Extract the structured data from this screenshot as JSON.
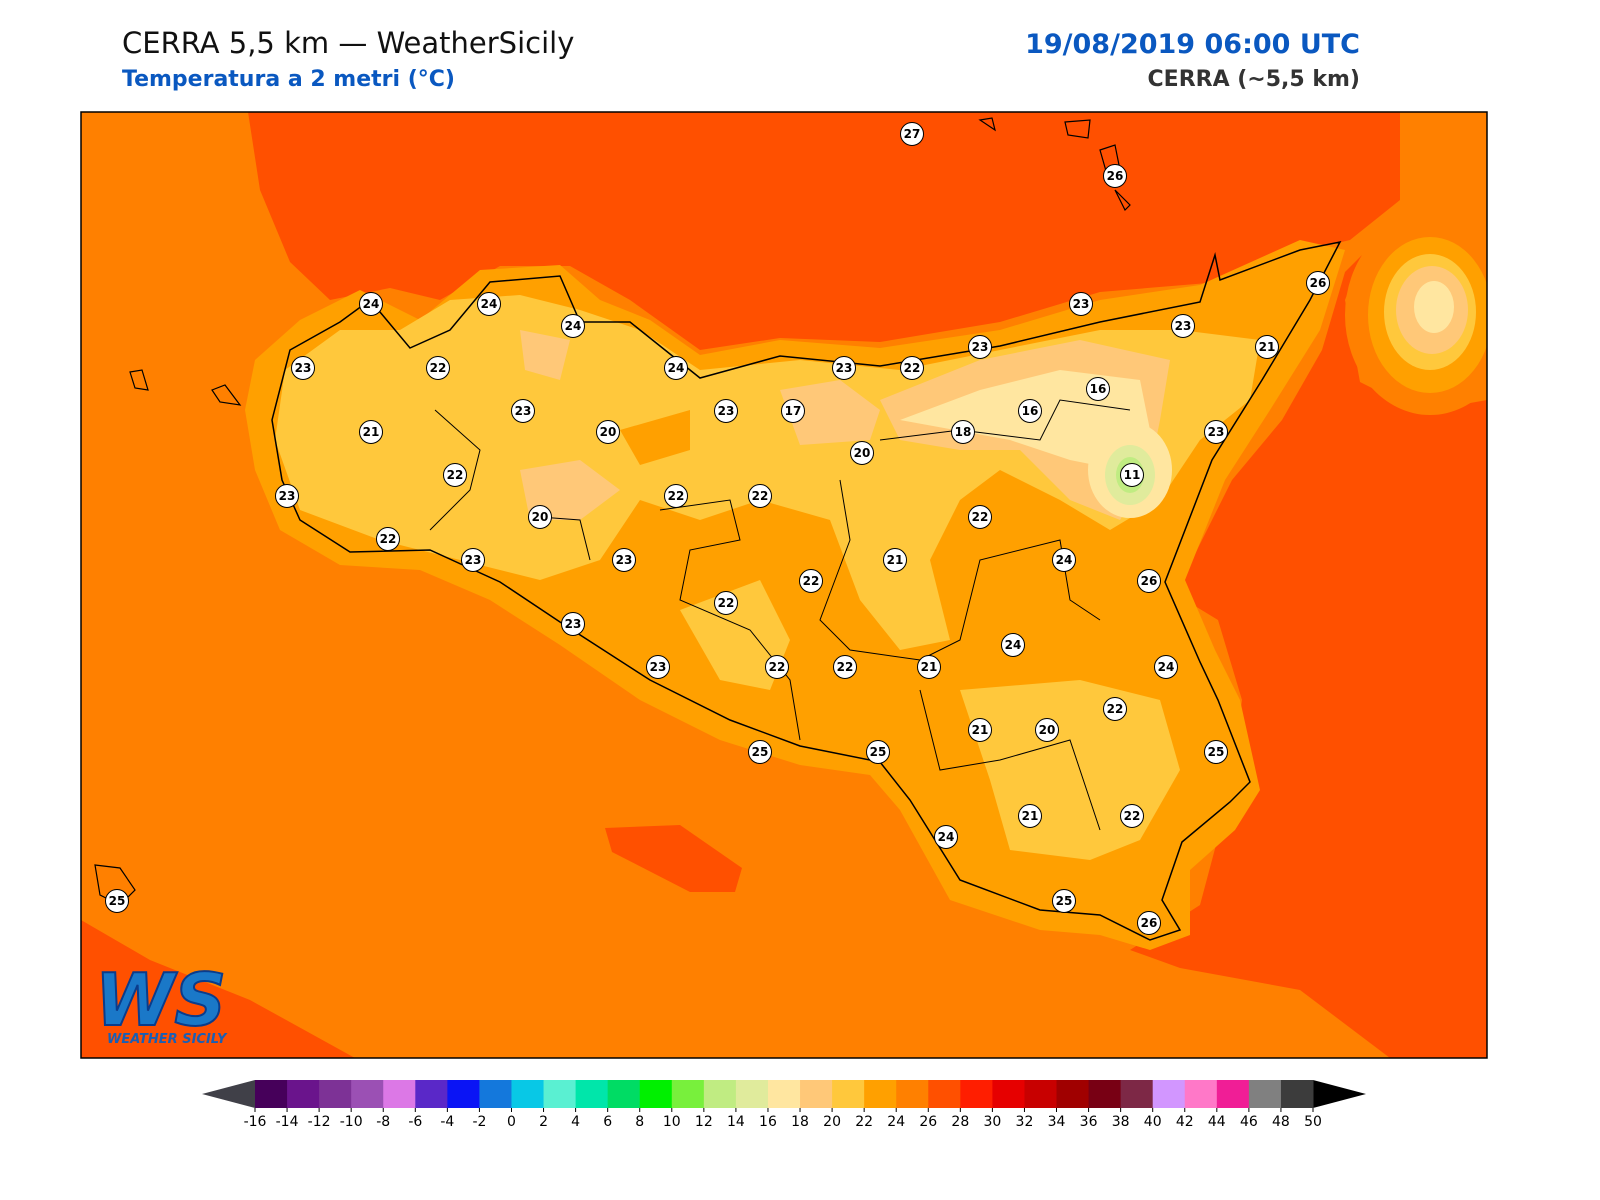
{
  "header": {
    "title": "CERRA 5,5 km — WeatherSicily",
    "subtitle": "Temperatura a 2 metri (°C)",
    "datetime": "19/08/2019 06:00 UTC",
    "model": "CERRA (~5,5 km)"
  },
  "map": {
    "stations": [
      27,
      26,
      26,
      24,
      24,
      24,
      23,
      23,
      21,
      23,
      22,
      24,
      23,
      22,
      23,
      16,
      23,
      23,
      17,
      16,
      21,
      20,
      18,
      23,
      20,
      11,
      22,
      22,
      22,
      23,
      20,
      22,
      22,
      23,
      23,
      21,
      24,
      22,
      26,
      22,
      23,
      24,
      23,
      22,
      22,
      21,
      24,
      22,
      21,
      20,
      25,
      25,
      25,
      21,
      22,
      24,
      25,
      25,
      26
    ]
  },
  "logo": {
    "mark": "WS",
    "text": "WEATHER SICILY"
  },
  "colorbar": {
    "ticks": [
      -16,
      -14,
      -12,
      -10,
      -8,
      -6,
      -4,
      -2,
      0,
      2,
      4,
      6,
      8,
      10,
      12,
      14,
      16,
      18,
      20,
      22,
      24,
      26,
      28,
      30,
      32,
      34,
      36,
      38,
      40,
      42,
      44,
      46,
      48,
      50
    ],
    "colors": [
      "#46005a",
      "#6a148c",
      "#7d3296",
      "#9b50b4",
      "#dc78e6",
      "#5a28c8",
      "#0a14f5",
      "#1478dc",
      "#08c8e6",
      "#5af0d2",
      "#00e6aa",
      "#00dc64",
      "#00f000",
      "#78f03c",
      "#c0ec82",
      "#e0eb9c",
      "#ffe6a0",
      "#ffc878",
      "#ffc83c",
      "#ffa000",
      "#ff8000",
      "#ff5000",
      "#ff1e00",
      "#e60000",
      "#c80000",
      "#a00000",
      "#780014",
      "#7d2846",
      "#d296ff",
      "#ff78c8",
      "#f01e96",
      "#808080",
      "#3c3c3c"
    ],
    "under_color": "#404048",
    "over_color": "#000000"
  }
}
